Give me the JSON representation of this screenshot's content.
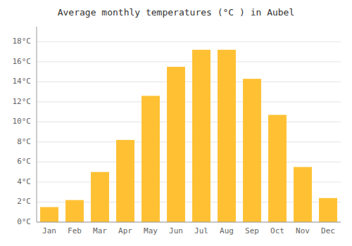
{
  "chart_data": {
    "type": "bar",
    "title": "Average monthly temperatures (°C ) in Aubel",
    "categories": [
      "Jan",
      "Feb",
      "Mar",
      "Apr",
      "May",
      "Jun",
      "Jul",
      "Aug",
      "Sep",
      "Oct",
      "Nov",
      "Dec"
    ],
    "values": [
      1.5,
      2.2,
      5.0,
      8.2,
      12.6,
      15.5,
      17.2,
      17.2,
      14.3,
      10.7,
      5.5,
      2.4
    ],
    "color": "#FFC133",
    "ylim": [
      0,
      19.5
    ],
    "yticks": [
      {
        "value": 0,
        "label": "0°C"
      },
      {
        "value": 2,
        "label": "2°C"
      },
      {
        "value": 4,
        "label": "4°C"
      },
      {
        "value": 6,
        "label": "6°C"
      },
      {
        "value": 8,
        "label": "8°C"
      },
      {
        "value": 10,
        "label": "10°C"
      },
      {
        "value": 12,
        "label": "12°C"
      },
      {
        "value": 14,
        "label": "14°C"
      },
      {
        "value": 16,
        "label": "16°C"
      },
      {
        "value": 18,
        "label": "18°C"
      }
    ],
    "grid": true
  }
}
